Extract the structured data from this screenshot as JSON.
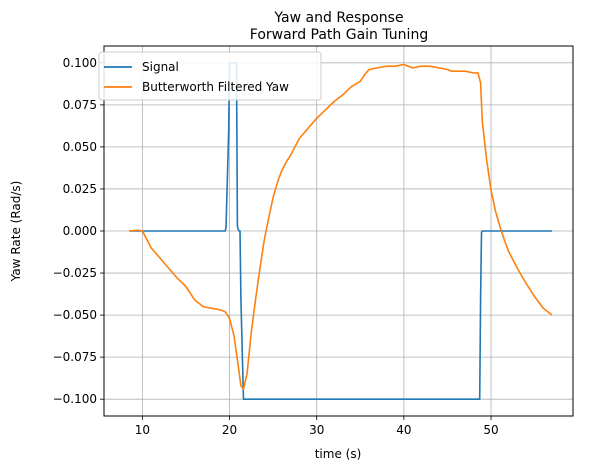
{
  "chart_data": {
    "type": "line",
    "title": "Yaw and Response",
    "subtitle": "Forward Path Gain Tuning",
    "xlabel": "time (s)",
    "ylabel": "Yaw Rate (Rad/s)",
    "xlim": [
      5.6,
      59.4
    ],
    "ylim": [
      -0.11,
      0.11
    ],
    "x_ticks": [
      10,
      20,
      30,
      40,
      50
    ],
    "x_tick_labels": [
      "10",
      "20",
      "30",
      "40",
      "50"
    ],
    "y_ticks": [
      -0.1,
      -0.075,
      -0.05,
      -0.025,
      0.0,
      0.025,
      0.05,
      0.075,
      0.1
    ],
    "y_tick_labels": [
      "−0.100",
      "−0.075",
      "−0.050",
      "−0.025",
      "0.000",
      "0.025",
      "0.050",
      "0.075",
      "0.100"
    ],
    "grid": true,
    "legend_position": "top-left",
    "series": [
      {
        "name": "Signal",
        "color": "#1f77b4",
        "x": [
          8.5,
          10.0,
          15.0,
          19.5,
          19.6,
          19.8,
          19.9,
          20.0,
          20.5,
          20.8,
          20.9,
          21.0,
          21.1,
          21.2,
          21.3,
          21.5,
          21.6,
          25.0,
          30.0,
          35.0,
          40.0,
          45.0,
          48.7,
          48.8,
          48.9,
          49.0,
          50.0,
          55.0,
          57.0
        ],
        "y": [
          0.0,
          0.0,
          0.0,
          0.0,
          0.002,
          0.04,
          0.06,
          0.1,
          0.1,
          0.1,
          0.003,
          0.001,
          0.0,
          0.0,
          -0.04,
          -0.08,
          -0.1,
          -0.1,
          -0.1,
          -0.1,
          -0.1,
          -0.1,
          -0.1,
          -0.04,
          -0.001,
          0.0,
          0.0,
          0.0,
          0.0
        ]
      },
      {
        "name": "Butterworth Filtered Yaw",
        "color": "#ff7f0e",
        "x": [
          8.5,
          9.5,
          10.0,
          10.5,
          11.0,
          12.0,
          13.0,
          14.0,
          15.0,
          15.5,
          16.0,
          17.0,
          18.0,
          19.0,
          19.5,
          20.0,
          20.5,
          21.0,
          21.3,
          21.6,
          22.0,
          22.5,
          23.0,
          23.5,
          24.0,
          24.5,
          25.0,
          25.5,
          26.0,
          26.5,
          27.0,
          27.5,
          28.0,
          28.5,
          29.0,
          30.0,
          31.0,
          32.0,
          33.0,
          34.0,
          35.0,
          35.5,
          36.0,
          37.0,
          38.0,
          39.0,
          40.0,
          40.5,
          41.0,
          42.0,
          43.0,
          44.0,
          45.0,
          45.5,
          46.0,
          47.0,
          48.0,
          48.5,
          48.8,
          49.0,
          49.5,
          50.0,
          50.5,
          51.0,
          51.5,
          52.0,
          53.0,
          54.0,
          55.0,
          56.0,
          57.0
        ],
        "y": [
          0.0,
          0.0005,
          0.0,
          -0.005,
          -0.01,
          -0.016,
          -0.022,
          -0.028,
          -0.033,
          -0.037,
          -0.041,
          -0.045,
          -0.046,
          -0.047,
          -0.048,
          -0.052,
          -0.062,
          -0.08,
          -0.092,
          -0.094,
          -0.085,
          -0.06,
          -0.04,
          -0.022,
          -0.005,
          0.008,
          0.02,
          0.029,
          0.036,
          0.041,
          0.045,
          0.05,
          0.055,
          0.058,
          0.061,
          0.067,
          0.072,
          0.077,
          0.081,
          0.086,
          0.089,
          0.093,
          0.096,
          0.097,
          0.098,
          0.098,
          0.099,
          0.098,
          0.097,
          0.098,
          0.098,
          0.097,
          0.096,
          0.095,
          0.095,
          0.095,
          0.094,
          0.094,
          0.088,
          0.065,
          0.042,
          0.024,
          0.012,
          0.003,
          -0.005,
          -0.012,
          -0.022,
          -0.031,
          -0.039,
          -0.046,
          -0.05
        ]
      }
    ]
  }
}
